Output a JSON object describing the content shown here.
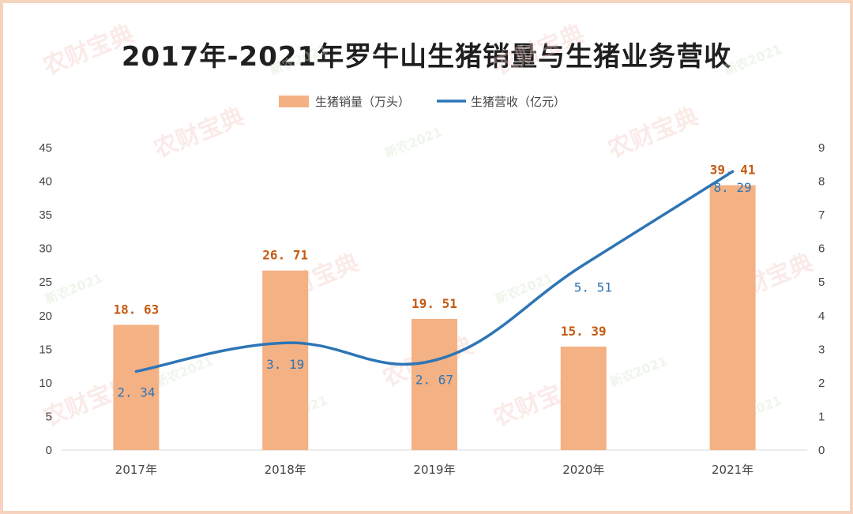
{
  "title": "2017年-2021年罗牛山生猪销量与生猪业务营收",
  "colors": {
    "bar": "#f4b183",
    "bar_label": "#c55a11",
    "line": "#2e75b6",
    "line_label": "#2e75b6",
    "frame": "#f6d3bd",
    "axis": "#d9d9d9"
  },
  "watermark": [
    "农财宝典",
    "新农2021"
  ],
  "chart_data": {
    "type": "bar",
    "title": "2017年-2021年罗牛山生猪销量与生猪业务营收",
    "categories": [
      "2017年",
      "2018年",
      "2019年",
      "2020年",
      "2021年"
    ],
    "series": [
      {
        "name": "生猪销量（万头）",
        "type": "bar",
        "axis": "left",
        "values": [
          18.63,
          26.71,
          19.51,
          15.39,
          39.41
        ],
        "labels": [
          "18. 63",
          "26. 71",
          "19. 51",
          "15. 39",
          "39. 41"
        ]
      },
      {
        "name": "生猪营收（亿元）",
        "type": "line",
        "axis": "right",
        "smooth": true,
        "values": [
          2.34,
          3.19,
          2.67,
          5.51,
          8.29
        ],
        "labels": [
          "2. 34",
          "3. 19",
          "2. 67",
          "5. 51",
          "8. 29"
        ]
      }
    ],
    "y_left": {
      "min": 0,
      "max": 45,
      "step": 5,
      "ticks": [
        "0",
        "5",
        "10",
        "15",
        "20",
        "25",
        "30",
        "35",
        "40",
        "45"
      ]
    },
    "y_right": {
      "min": 0,
      "max": 9,
      "step": 1,
      "ticks": [
        "0",
        "1",
        "2",
        "3",
        "4",
        "5",
        "6",
        "7",
        "8",
        "9"
      ]
    },
    "legend": "top-center",
    "grid": false
  }
}
